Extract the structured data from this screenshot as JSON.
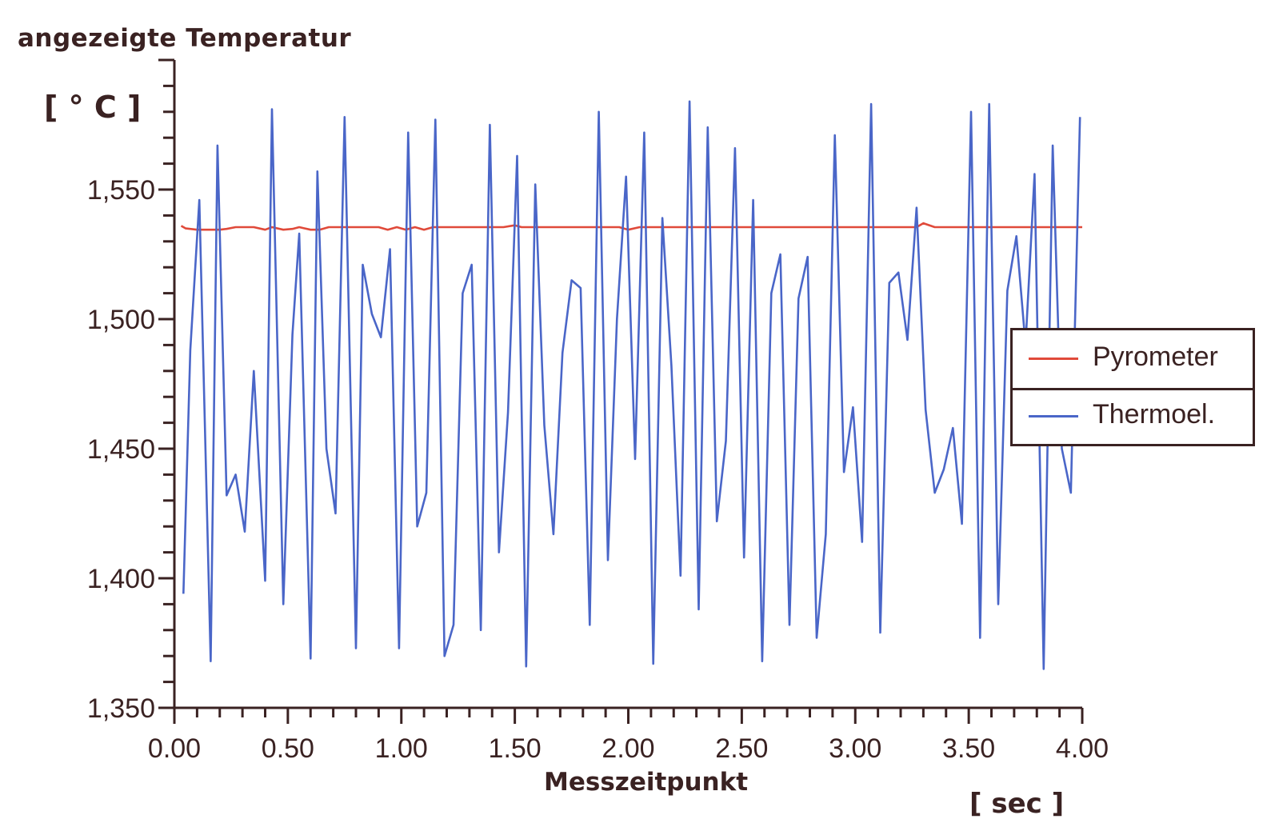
{
  "chart_data": {
    "type": "line",
    "ylabel": "angezeigte Temperatur",
    "yunit": "[ ° C ]",
    "xlabel": "Messzeitpunkt",
    "xunit": "[ sec ]",
    "xlim": [
      0,
      4.0
    ],
    "ylim": [
      1350,
      1600
    ],
    "xticks": [
      "0.00",
      "0.50",
      "1.00",
      "1.50",
      "2.00",
      "2.50",
      "3.00",
      "3.50",
      "4.00"
    ],
    "yticks": [
      "1,350",
      "1,400",
      "1,450",
      "1,500",
      "1,550"
    ],
    "legend_position": "right",
    "series": [
      {
        "name": "Pyrometer",
        "color": "#e04a3a",
        "x": [
          0.03,
          0.05,
          0.1,
          0.15,
          0.2,
          0.23,
          0.27,
          0.31,
          0.35,
          0.4,
          0.43,
          0.48,
          0.52,
          0.55,
          0.6,
          0.64,
          0.68,
          0.72,
          0.76,
          0.8,
          0.85,
          0.9,
          0.94,
          0.98,
          1.02,
          1.06,
          1.1,
          1.14,
          1.2,
          1.26,
          1.3,
          1.36,
          1.4,
          1.45,
          1.5,
          1.53,
          1.58,
          1.64,
          1.7,
          1.76,
          1.8,
          1.86,
          1.9,
          1.96,
          2.0,
          2.05,
          2.1,
          2.2,
          2.3,
          2.4,
          2.5,
          2.6,
          2.7,
          2.8,
          2.9,
          3.0,
          3.1,
          3.2,
          3.27,
          3.3,
          3.35,
          3.4,
          3.5,
          3.6,
          3.7,
          3.8,
          3.9,
          4.0
        ],
        "y": [
          1536.0,
          1535.0,
          1534.5,
          1534.5,
          1534.5,
          1534.8,
          1535.5,
          1535.5,
          1535.5,
          1534.5,
          1535.5,
          1534.5,
          1534.8,
          1535.5,
          1534.5,
          1534.5,
          1535.5,
          1535.5,
          1535.5,
          1535.5,
          1535.5,
          1535.5,
          1534.5,
          1535.5,
          1534.5,
          1535.5,
          1534.5,
          1535.5,
          1535.5,
          1535.5,
          1535.5,
          1535.5,
          1535.5,
          1535.5,
          1536.2,
          1535.5,
          1535.5,
          1535.5,
          1535.5,
          1535.5,
          1535.5,
          1535.5,
          1535.5,
          1535.5,
          1534.5,
          1535.5,
          1535.5,
          1535.5,
          1535.5,
          1535.5,
          1535.5,
          1535.5,
          1535.5,
          1535.5,
          1535.5,
          1535.5,
          1535.5,
          1535.5,
          1535.5,
          1537.0,
          1535.5,
          1535.5,
          1535.5,
          1535.5,
          1535.5,
          1535.5,
          1535.5,
          1535.5
        ]
      },
      {
        "name": "Thermoel.",
        "color": "#4a66c8",
        "x": [
          0.04,
          0.07,
          0.11,
          0.16,
          0.19,
          0.23,
          0.27,
          0.31,
          0.35,
          0.4,
          0.43,
          0.48,
          0.52,
          0.55,
          0.6,
          0.63,
          0.67,
          0.71,
          0.75,
          0.8,
          0.83,
          0.87,
          0.91,
          0.95,
          0.99,
          1.03,
          1.07,
          1.11,
          1.15,
          1.19,
          1.23,
          1.27,
          1.31,
          1.35,
          1.39,
          1.43,
          1.47,
          1.51,
          1.55,
          1.59,
          1.63,
          1.67,
          1.71,
          1.75,
          1.79,
          1.83,
          1.87,
          1.91,
          1.95,
          1.99,
          2.03,
          2.07,
          2.11,
          2.15,
          2.19,
          2.23,
          2.27,
          2.31,
          2.35,
          2.39,
          2.43,
          2.47,
          2.51,
          2.55,
          2.59,
          2.63,
          2.67,
          2.71,
          2.75,
          2.79,
          2.83,
          2.87,
          2.91,
          2.95,
          2.99,
          3.03,
          3.07,
          3.11,
          3.15,
          3.19,
          3.23,
          3.27,
          3.31,
          3.35,
          3.39,
          3.43,
          3.47,
          3.51,
          3.55,
          3.59,
          3.63,
          3.67,
          3.71,
          3.75,
          3.79,
          3.83,
          3.87,
          3.91,
          3.95,
          3.99
        ],
        "y": [
          1394,
          1488,
          1546,
          1368,
          1567,
          1432,
          1440,
          1418,
          1480,
          1399,
          1581,
          1390,
          1494,
          1533,
          1369,
          1557,
          1450,
          1425,
          1578,
          1373,
          1521,
          1502,
          1493,
          1527,
          1373,
          1572,
          1420,
          1433,
          1577,
          1370,
          1382,
          1510,
          1521,
          1380,
          1575,
          1410,
          1464,
          1563,
          1366,
          1552,
          1459,
          1417,
          1487,
          1515,
          1512,
          1382,
          1580,
          1407,
          1500,
          1555,
          1446,
          1572,
          1367,
          1539,
          1482,
          1401,
          1584,
          1388,
          1574,
          1422,
          1453,
          1566,
          1408,
          1546,
          1368,
          1510,
          1525,
          1382,
          1508,
          1524,
          1377,
          1417,
          1571,
          1441,
          1466,
          1414,
          1583,
          1379,
          1514,
          1518,
          1492,
          1543,
          1465,
          1433,
          1442,
          1458,
          1421,
          1580,
          1377,
          1583,
          1390,
          1511,
          1532,
          1490,
          1556,
          1365,
          1567,
          1450,
          1433,
          1578
        ]
      }
    ]
  }
}
